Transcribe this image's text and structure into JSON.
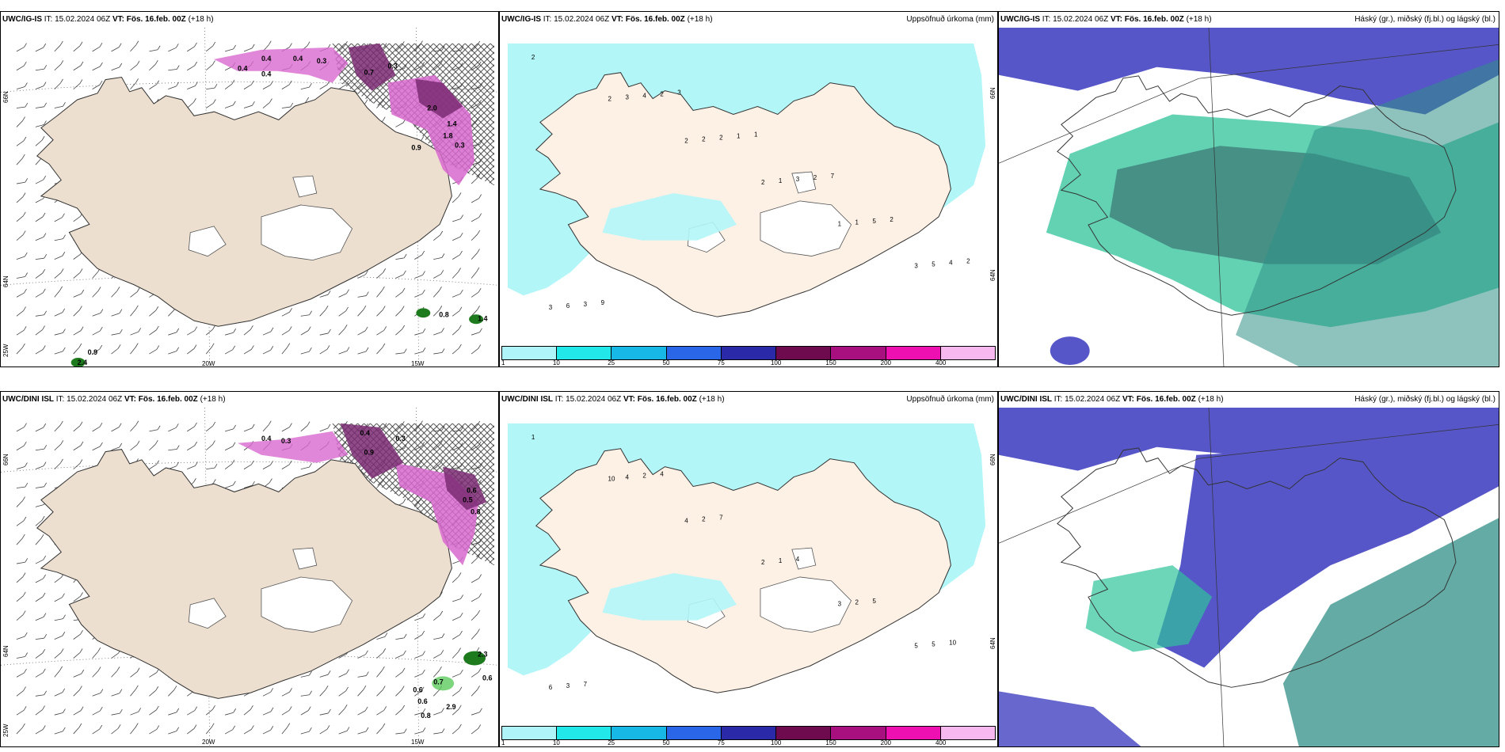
{
  "rows": [
    {
      "model": "UWC/IG-IS",
      "issue": "IT: 15.02.2024 06Z",
      "valid_label": "VT: Fös. 16.feb. 00Z",
      "lead": "(+18 h)",
      "wind_values": [
        "0.4",
        "0.4",
        "0.3",
        "0.3",
        "0.4",
        "0.4",
        "0.7",
        "2.0",
        "1.4",
        "1.8",
        "0.3",
        "0.9",
        "0.8",
        "1.4",
        "0.9",
        "2.4"
      ],
      "precip_values": [
        "2",
        "2",
        "2",
        "2",
        "1",
        "3",
        "3",
        "3",
        "2",
        "1",
        "1",
        "5",
        "6",
        "4",
        "2",
        "3",
        "5",
        "4",
        "3",
        "2",
        "1",
        "2",
        "2",
        "2",
        "9",
        "3",
        "1",
        "7"
      ],
      "cloud_note": ""
    },
    {
      "model": "UWC/DINI ISL",
      "issue": "IT: 15.02.2024 06Z",
      "valid_label": "VT: Fös. 16.feb. 00Z",
      "lead": "(+18 h)",
      "wind_values": [
        "0.4",
        "0.3",
        "0.4",
        "0.3",
        "0.9",
        "0.6",
        "0.5",
        "0.8",
        "2.3",
        "0.6",
        "0.7",
        "0.6",
        "0.6",
        "2.9",
        "0.8"
      ],
      "precip_values": [
        "1",
        "10",
        "4",
        "2",
        "3",
        "5",
        "6",
        "4",
        "2",
        "1",
        "2",
        "5",
        "3",
        "2",
        "7",
        "4",
        "5",
        "10",
        "7",
        "4"
      ],
      "cloud_note": ""
    }
  ],
  "precip_title": "Uppsöfnuð úrkoma (mm)",
  "cloud_title": "Háský (gr.), miðský (fj.bl.) og lágský (bl.)",
  "legend": {
    "ticks": [
      "1",
      "10",
      "25",
      "50",
      "75",
      "100",
      "150",
      "200",
      "400"
    ],
    "colors": [
      "#aef4f8",
      "#22e8ea",
      "#18b8e6",
      "#2a66e8",
      "#2a2aa8",
      "#6e0a4e",
      "#a81080",
      "#ee10b0",
      "#f6b8ee"
    ]
  },
  "axis": {
    "lat_top": "66N",
    "lat_mid": "64N",
    "lon_left": "25W",
    "lon_20": "20W",
    "lon_15": "15W"
  },
  "colors": {
    "land": "#ecdfd0",
    "land_precip": "#fdf1e6",
    "precip_light": "#b2f6f8",
    "cloud_high": "#5656c8",
    "cloud_mid": "#2fc39a",
    "cloud_low": "#3f7f7a",
    "precip_pink": "#d869cf",
    "precip_purple": "#7a2c72"
  }
}
